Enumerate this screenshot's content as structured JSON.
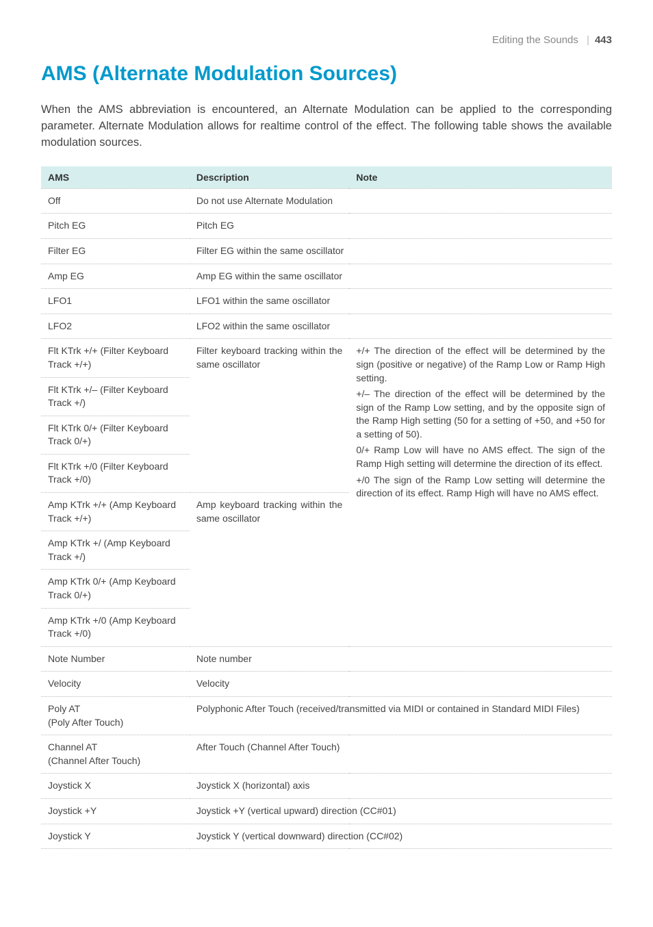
{
  "header": {
    "section": "Editing the Sounds",
    "page": "443"
  },
  "title": "AMS (Alternate Modulation Sources)",
  "intro": "When the AMS abbreviation is encountered, an Alternate Modulation can be applied to the corresponding parameter. Alternate Modulation allows for realtime control of the effect. The following table shows the available modulation sources.",
  "table": {
    "headers": {
      "ams": "AMS",
      "desc": "Description",
      "note": "Note"
    },
    "simple_rows": [
      {
        "ams": "Off",
        "desc": "Do not use Alternate Modulation"
      },
      {
        "ams": "Pitch EG",
        "desc": "Pitch EG"
      },
      {
        "ams": "Filter EG",
        "desc": "Filter EG within the same oscillator"
      },
      {
        "ams": "Amp EG",
        "desc": "Amp EG within the same oscillator"
      },
      {
        "ams": "LFO1",
        "desc": "LFO1 within the same oscillator"
      },
      {
        "ams": "LFO2",
        "desc": "LFO2 within the same oscillator"
      }
    ],
    "flt_group": {
      "ams": [
        "Flt KTrk +/+ (Filter Keyboard Track +/+)",
        "Flt KTrk +/– (Filter Keyboard Track +/)",
        "Flt KTrk 0/+ (Filter Keyboard Track 0/+)",
        "Flt KTrk +/0 (Filter Keyboard Track +/0)"
      ],
      "desc": "Filter keyboard tracking within the same oscillator"
    },
    "amp_group": {
      "ams": [
        "Amp KTrk +/+ (Amp Keyboard Track +/+)",
        "Amp KTrk +/ (Amp Keyboard Track +/)",
        "Amp KTrk 0/+ (Amp Keyboard Track 0/+)",
        "Amp KTrk +/0 (Amp Keyboard Track +/0)"
      ],
      "desc": "Amp keyboard tracking within the same oscillator"
    },
    "big_note": {
      "p1": "+/+  The direction of the effect will be determined by the sign (positive or negative) of the Ramp Low or Ramp High setting.",
      "p2": "+/–  The direction of the effect will be determined by the sign of the Ramp Low setting, and by the opposite sign of the Ramp High setting (50 for a setting of +50, and +50 for a setting of 50).",
      "p3": "0/+  Ramp Low will have no AMS effect. The sign of the Ramp High setting will determine the direction of its effect.",
      "p4": "+/0  The sign of the Ramp Low setting will determine the direction of its effect. Ramp High will have no AMS effect."
    },
    "tail_rows": [
      {
        "ams": "Note Number",
        "desc": "Note number"
      },
      {
        "ams": "Velocity",
        "desc": "Velocity"
      },
      {
        "ams": "Poly AT\n(Poly After Touch)",
        "desc": "Polyphonic After Touch (received/transmitted via MIDI or contained in Standard MIDI Files)"
      },
      {
        "ams": "Channel AT\n(Channel After Touch)",
        "desc": "After Touch (Channel After Touch)"
      },
      {
        "ams": "Joystick X",
        "desc": "Joystick X (horizontal) axis"
      },
      {
        "ams": "Joystick +Y",
        "desc": "Joystick +Y (vertical upward) direction (CC#01)"
      },
      {
        "ams": "Joystick Y",
        "desc": "Joystick Y (vertical downward) direction (CC#02)"
      }
    ]
  }
}
